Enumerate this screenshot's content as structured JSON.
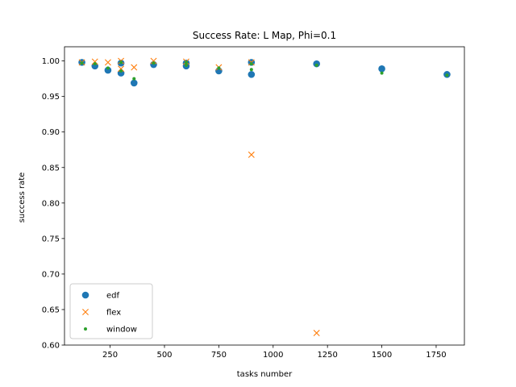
{
  "chart_data": {
    "type": "scatter",
    "title": "Success Rate: L Map, Phi=0.1",
    "xlabel": "tasks number",
    "ylabel": "success rate",
    "xlim": [
      40,
      1880
    ],
    "ylim": [
      0.6,
      1.02
    ],
    "xticks": [
      250,
      500,
      750,
      1000,
      1250,
      1500,
      1750
    ],
    "xtick_labels": [
      "250",
      "500",
      "750",
      "1000",
      "1250",
      "1500",
      "1750"
    ],
    "yticks": [
      0.6,
      0.65,
      0.7,
      0.75,
      0.8,
      0.85,
      0.9,
      0.95,
      1.0
    ],
    "ytick_labels": [
      "0.60",
      "0.65",
      "0.70",
      "0.75",
      "0.80",
      "0.85",
      "0.90",
      "0.95",
      "1.00"
    ],
    "grid": false,
    "legend_position": "lower-left",
    "series": [
      {
        "name": "edf",
        "marker": "circle",
        "color": "#1f77b4",
        "x": [
          120,
          180,
          240,
          300,
          300,
          360,
          450,
          600,
          600,
          750,
          900,
          900,
          1200,
          1500,
          1800
        ],
        "y": [
          0.998,
          0.993,
          0.987,
          0.997,
          0.983,
          0.969,
          0.995,
          0.993,
          0.997,
          0.986,
          0.998,
          0.981,
          0.996,
          0.989,
          0.981
        ]
      },
      {
        "name": "flex",
        "marker": "x",
        "color": "#ff7f0e",
        "x": [
          120,
          180,
          240,
          300,
          300,
          360,
          450,
          600,
          750,
          900,
          900,
          1200
        ],
        "y": [
          0.998,
          0.999,
          0.998,
          1.0,
          0.989,
          0.991,
          1.0,
          0.999,
          0.991,
          0.998,
          0.868,
          0.617
        ]
      },
      {
        "name": "window",
        "marker": "point",
        "color": "#2ca02c",
        "x": [
          120,
          180,
          240,
          300,
          300,
          360,
          450,
          600,
          600,
          750,
          900,
          900,
          1200,
          1500,
          1800
        ],
        "y": [
          0.997,
          0.996,
          0.99,
          0.998,
          0.986,
          0.975,
          0.997,
          0.994,
          0.998,
          0.99,
          0.996,
          0.988,
          0.994,
          0.983,
          0.98
        ]
      }
    ]
  }
}
